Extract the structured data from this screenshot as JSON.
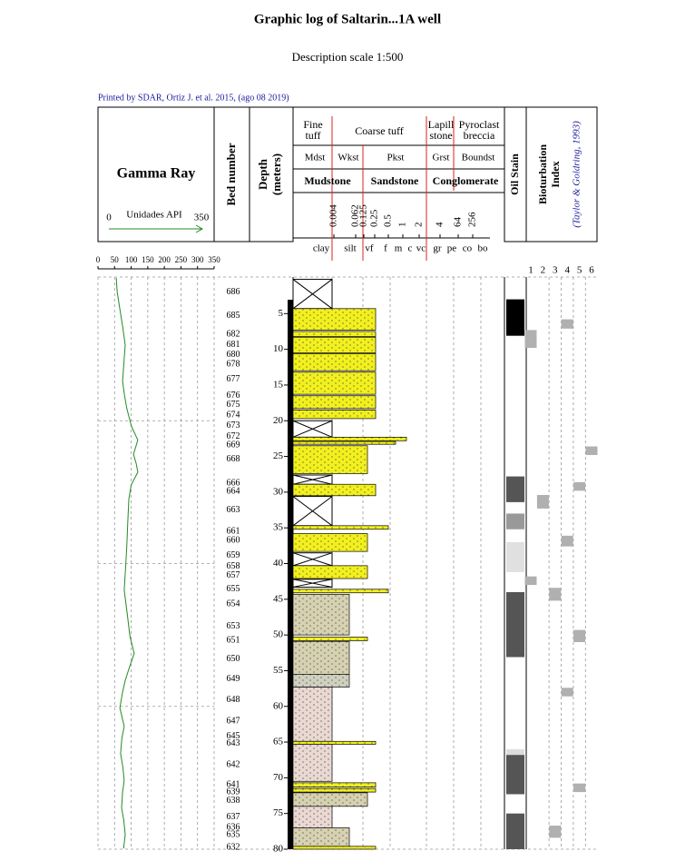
{
  "chart_data": {
    "type": "well_log",
    "title": "Graphic log of Saltarin...1A well",
    "subtitle": "Description scale 1:500",
    "credit": "Printed by SDAR, Ortiz J. et al. 2015, (ago 08 2019)",
    "gamma_header": {
      "title": "Gamma Ray",
      "unit": "Unidades API",
      "min": 0,
      "max": 350,
      "color": "#228b22"
    },
    "bed_header": "Bed number",
    "depth_header": [
      "Depth",
      "(meters)"
    ],
    "oil_header": "Oil Stain",
    "bio_header": [
      "Bioturbation",
      "Index"
    ],
    "bio_reference": "(Taylor & Goldring, 1993)",
    "lith_row1": [
      [
        "Fine",
        "tuff"
      ],
      [
        "Coarse tuff"
      ],
      [
        "Lapill",
        "stone"
      ],
      [
        "Pyroclast",
        "breccia"
      ]
    ],
    "lith_row2": [
      "Mdst",
      "Wkst",
      "Pkst",
      "Grst",
      "Boundst"
    ],
    "lith_row3": [
      "Mudstone",
      "Sandstone",
      "Conglomerate"
    ],
    "grain_sizes": [
      0.004,
      0.062,
      0.125,
      0.25,
      0.5,
      1,
      2,
      4,
      64,
      256
    ],
    "grain_labels": [
      "clay",
      "silt",
      "vf",
      "f",
      "m",
      "c",
      "vc",
      "gr",
      "pe",
      "co",
      "bo"
    ],
    "gamma_xlim": [
      0,
      350
    ],
    "gamma_xticks": [
      0,
      50,
      100,
      150,
      200,
      250,
      300,
      350
    ],
    "depth_lim": [
      0,
      80
    ],
    "depth_ticks": [
      5,
      10,
      15,
      20,
      25,
      30,
      35,
      40,
      45,
      50,
      55,
      60,
      65,
      70,
      75,
      80
    ],
    "bio_ticks": [
      1,
      2,
      3,
      4,
      5,
      6
    ],
    "gamma": {
      "depth": [
        0,
        2,
        5,
        7,
        9.4,
        12,
        14.5,
        16.5,
        18.3,
        20.8,
        22.7,
        24.7,
        26,
        27.2,
        29,
        31,
        34,
        37.4,
        40,
        43.7,
        47,
        50.1,
        52.6,
        54.5,
        56.4,
        58,
        60.2,
        62.8,
        64.5,
        66.6,
        68.5,
        70.4,
        72,
        74.2,
        76,
        78,
        79.9
      ],
      "api": [
        55,
        58,
        68,
        75,
        82,
        78,
        74,
        80,
        87,
        101,
        120,
        107,
        115,
        120,
        100,
        93,
        90,
        87,
        84,
        79,
        88,
        96,
        109,
        95,
        82,
        74,
        66,
        79,
        72,
        68,
        75,
        79,
        74,
        71,
        78,
        82,
        77
      ]
    },
    "bed_numbers": [
      {
        "bed": 686,
        "depth": 2.0
      },
      {
        "bed": 685,
        "depth": 5.3
      },
      {
        "bed": 682,
        "depth": 7.9
      },
      {
        "bed": 681,
        "depth": 9.4
      },
      {
        "bed": 680,
        "depth": 10.8
      },
      {
        "bed": 678,
        "depth": 12.1
      },
      {
        "bed": 677,
        "depth": 14.2
      },
      {
        "bed": 676,
        "depth": 16.5
      },
      {
        "bed": 675,
        "depth": 17.8
      },
      {
        "bed": 674,
        "depth": 19.2
      },
      {
        "bed": 673,
        "depth": 20.7
      },
      {
        "bed": 672,
        "depth": 22.2
      },
      {
        "bed": 669,
        "depth": 23.4
      },
      {
        "bed": 668,
        "depth": 25.4
      },
      {
        "bed": 666,
        "depth": 28.8
      },
      {
        "bed": 664,
        "depth": 29.9
      },
      {
        "bed": 663,
        "depth": 32.5
      },
      {
        "bed": 661,
        "depth": 35.5
      },
      {
        "bed": 660,
        "depth": 36.8
      },
      {
        "bed": 659,
        "depth": 38.9
      },
      {
        "bed": 658,
        "depth": 40.4
      },
      {
        "bed": 657,
        "depth": 41.7
      },
      {
        "bed": 655,
        "depth": 43.6
      },
      {
        "bed": 654,
        "depth": 45.7
      },
      {
        "bed": 653,
        "depth": 48.8
      },
      {
        "bed": 651,
        "depth": 50.8
      },
      {
        "bed": 650,
        "depth": 53.4
      },
      {
        "bed": 649,
        "depth": 56.2
      },
      {
        "bed": 648,
        "depth": 59.1
      },
      {
        "bed": 647,
        "depth": 62.1
      },
      {
        "bed": 645,
        "depth": 64.2
      },
      {
        "bed": 643,
        "depth": 65.2
      },
      {
        "bed": 642,
        "depth": 68.2
      },
      {
        "bed": 641,
        "depth": 71.0
      },
      {
        "bed": 639,
        "depth": 72.0
      },
      {
        "bed": 638,
        "depth": 73.2
      },
      {
        "bed": 637,
        "depth": 75.5
      },
      {
        "bed": 636,
        "depth": 77.0
      },
      {
        "bed": 635,
        "depth": 78.0
      },
      {
        "bed": 632,
        "depth": 79.8
      }
    ],
    "covered": [
      [
        0.2,
        4.3
      ],
      [
        20,
        22.3
      ],
      [
        27.6,
        28.9
      ],
      [
        30.6,
        34.7
      ],
      [
        38.5,
        40.3
      ],
      [
        42.2,
        43.3
      ]
    ],
    "beds": [
      {
        "top": 4.3,
        "base": 7.3,
        "color": "#f2f01e",
        "grain": "f"
      },
      {
        "top": 7.5,
        "base": 8.2,
        "color": "#f2f01e",
        "grain": "f"
      },
      {
        "top": 8.3,
        "base": 10.5,
        "color": "#f2f01e",
        "grain": "f"
      },
      {
        "top": 10.6,
        "base": 13,
        "color": "#f2f01e",
        "grain": "f"
      },
      {
        "top": 13.2,
        "base": 16.3,
        "color": "#f2f01e",
        "grain": "f"
      },
      {
        "top": 16.5,
        "base": 18.3,
        "color": "#f2f01e",
        "grain": "f"
      },
      {
        "top": 18.5,
        "base": 19.7,
        "color": "#f2f01e",
        "grain": "f"
      },
      {
        "top": 22.3,
        "base": 22.8,
        "color": "#f2f01e",
        "grain": "vc"
      },
      {
        "top": 22.9,
        "base": 23.3,
        "color": "#f2f01e",
        "grain": "c"
      },
      {
        "top": 23.5,
        "base": 27.4,
        "color": "#f2f01e",
        "grain": "vf"
      },
      {
        "top": 28.9,
        "base": 30.5,
        "color": "#f2f01e",
        "grain": "f"
      },
      {
        "top": 34.7,
        "base": 35.2,
        "color": "#f2f01e",
        "grain": "m"
      },
      {
        "top": 35.8,
        "base": 38.3,
        "color": "#f2f01e",
        "grain": "vf"
      },
      {
        "top": 40.3,
        "base": 42.1,
        "color": "#f2f01e",
        "grain": "vf"
      },
      {
        "top": 43.6,
        "base": 44.1,
        "color": "#f2f01e",
        "grain": "m"
      },
      {
        "top": 44.3,
        "base": 50,
        "color": "#d6d1b1",
        "grain": "silt"
      },
      {
        "top": 50.3,
        "base": 50.8,
        "color": "#f2f01e",
        "grain": "vf"
      },
      {
        "top": 50.9,
        "base": 55.5,
        "color": "#d6d1b1",
        "grain": "silt"
      },
      {
        "top": 55.5,
        "base": 57.3,
        "color": "#d0d0c0",
        "grain": "silt"
      },
      {
        "top": 57.3,
        "base": 64.9,
        "color": "#ead8d2",
        "grain": "clay"
      },
      {
        "top": 64.9,
        "base": 65.3,
        "color": "#f2f01e",
        "grain": "f"
      },
      {
        "top": 65.3,
        "base": 70.5,
        "color": "#ead8d2",
        "grain": "clay"
      },
      {
        "top": 70.7,
        "base": 71.3,
        "color": "#f2f01e",
        "grain": "f"
      },
      {
        "top": 71.5,
        "base": 72,
        "color": "#f2f01e",
        "grain": "f"
      },
      {
        "top": 72.1,
        "base": 74,
        "color": "#d6d1b1",
        "grain": "vf"
      },
      {
        "top": 74,
        "base": 77,
        "color": "#ead8d2",
        "grain": "clay"
      },
      {
        "top": 77,
        "base": 79.6,
        "color": "#d6d1b1",
        "grain": "silt"
      },
      {
        "top": 79.6,
        "base": 80,
        "color": "#f2f01e",
        "grain": "f"
      }
    ],
    "oil_stain": [
      {
        "top": 3,
        "base": 8.1,
        "color": "#000000"
      },
      {
        "top": 27.8,
        "base": 31.4,
        "color": "#555555"
      },
      {
        "top": 33,
        "base": 35.2,
        "color": "#999999"
      },
      {
        "top": 37,
        "base": 41.2,
        "color": "#e0e0e0"
      },
      {
        "top": 44,
        "base": 53.1,
        "color": "#555555"
      },
      {
        "top": 66,
        "base": 66.8,
        "color": "#dddddd"
      },
      {
        "top": 66.8,
        "base": 72.3,
        "color": "#555555"
      },
      {
        "top": 75,
        "base": 80,
        "color": "#555555"
      }
    ],
    "bioturbation": [
      {
        "top": 5.8,
        "base": 7.1,
        "index": 4
      },
      {
        "top": 7.3,
        "base": 9.8,
        "index": 1
      },
      {
        "top": 23.6,
        "base": 24.8,
        "index": 6
      },
      {
        "top": 28.6,
        "base": 29.8,
        "index": 5
      },
      {
        "top": 30.4,
        "base": 32.3,
        "index": 2
      },
      {
        "top": 36.1,
        "base": 37.6,
        "index": 4
      },
      {
        "top": 41.8,
        "base": 43.0,
        "index": 1
      },
      {
        "top": 43.4,
        "base": 45.2,
        "index": 3
      },
      {
        "top": 49.3,
        "base": 51.0,
        "index": 5
      },
      {
        "top": 57.4,
        "base": 58.6,
        "index": 4
      },
      {
        "top": 70.8,
        "base": 72.0,
        "index": 5
      },
      {
        "top": 76.7,
        "base": 78.4,
        "index": 3
      }
    ],
    "bio_color": "#b0b0b0"
  }
}
